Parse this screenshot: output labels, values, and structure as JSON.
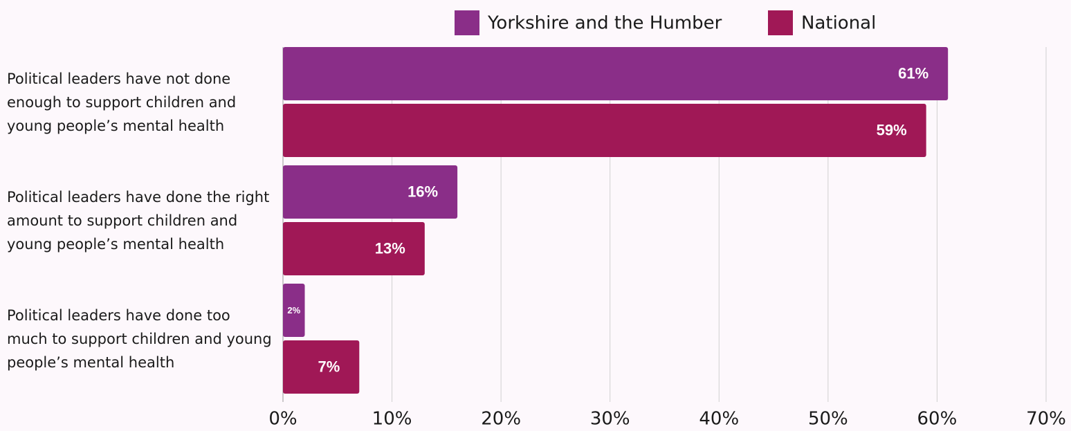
{
  "chart_data": {
    "type": "bar",
    "orientation": "horizontal",
    "categories": [
      "Political leaders have not done enough to support children and young people’s mental health",
      "Political leaders have done the right amount to support children and young people’s mental health",
      "Political leaders have done too much to support children and young people’s mental health"
    ],
    "series": [
      {
        "name": "Yorkshire and the Humber",
        "color": "#8a2e88",
        "values": [
          61,
          16,
          2
        ],
        "value_labels": [
          "61%",
          "16%",
          "2%"
        ]
      },
      {
        "name": "National",
        "color": "#a01856",
        "values": [
          59,
          13,
          7
        ],
        "value_labels": [
          "59%",
          "13%",
          "7%"
        ]
      }
    ],
    "xlim": [
      0,
      70
    ],
    "xticks": [
      {
        "value": 0,
        "label": "0%"
      },
      {
        "value": 10,
        "label": "10%"
      },
      {
        "value": 20,
        "label": "20%"
      },
      {
        "value": 30,
        "label": "30%"
      },
      {
        "value": 40,
        "label": "40%"
      },
      {
        "value": 50,
        "label": "50%"
      },
      {
        "value": 60,
        "label": "60%"
      },
      {
        "value": 70,
        "label": "70%"
      }
    ],
    "grid": true,
    "legend": "top"
  }
}
